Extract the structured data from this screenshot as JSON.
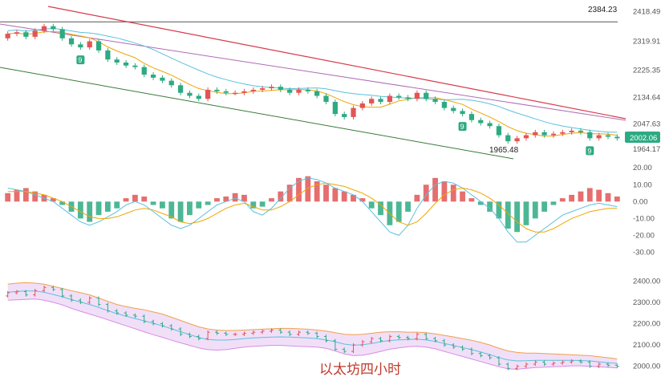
{
  "caption": "以太坊四小时",
  "colors": {
    "up": "#e25555",
    "down": "#2daa82",
    "ma_fast": "#f0a500",
    "ma_slow": "#5bc0de",
    "trend_red": "#d63a4a",
    "trend_purple": "#b06ab3",
    "trend_green": "#3a7a3a",
    "boll_fill": "#e7c9f3",
    "boll_upper": "#f0a04b",
    "boll_lower": "#d68ee6",
    "price_tag": "#2daa82"
  },
  "chart_data": [
    {
      "type": "candlestick",
      "name": "price",
      "y_ticks": [
        "2418.49",
        "2319.91",
        "2225.35",
        "2134.64",
        "2047.63",
        "1964.17"
      ],
      "ylim": [
        1940,
        2430
      ],
      "annotations": [
        {
          "label": "2384.23",
          "value": 2384.23
        },
        {
          "label": "1965.48",
          "value": 1965.48
        }
      ],
      "last_price": "2002.06",
      "markers": [
        {
          "label": "9",
          "index": 8
        },
        {
          "label": "9",
          "index": 50
        },
        {
          "label": "9",
          "index": 64
        }
      ],
      "close": [
        2345,
        2350,
        2335,
        2355,
        2370,
        2360,
        2330,
        2310,
        2300,
        2320,
        2290,
        2260,
        2250,
        2240,
        2235,
        2210,
        2200,
        2190,
        2175,
        2150,
        2140,
        2130,
        2160,
        2155,
        2150,
        2150,
        2155,
        2160,
        2165,
        2170,
        2160,
        2150,
        2160,
        2155,
        2140,
        2120,
        2080,
        2070,
        2100,
        2115,
        2130,
        2120,
        2140,
        2135,
        2130,
        2150,
        2130,
        2120,
        2100,
        2090,
        2080,
        2060,
        2050,
        2040,
        2010,
        1990,
        2000,
        2010,
        2020,
        2010,
        2015,
        2020,
        2025,
        2020,
        2000,
        2010,
        2005,
        2000
      ],
      "open": [
        2330,
        2345,
        2350,
        2335,
        2355,
        2370,
        2360,
        2330,
        2310,
        2300,
        2320,
        2290,
        2260,
        2250,
        2240,
        2235,
        2210,
        2200,
        2190,
        2175,
        2150,
        2140,
        2130,
        2160,
        2155,
        2150,
        2150,
        2155,
        2160,
        2165,
        2170,
        2160,
        2150,
        2160,
        2155,
        2140,
        2120,
        2080,
        2070,
        2100,
        2115,
        2130,
        2120,
        2140,
        2135,
        2130,
        2150,
        2130,
        2120,
        2100,
        2090,
        2080,
        2060,
        2050,
        2040,
        2010,
        1990,
        2000,
        2010,
        2020,
        2010,
        2015,
        2020,
        2025,
        2020,
        2000,
        2010,
        2005
      ]
    },
    {
      "type": "histogram",
      "name": "macd",
      "y_ticks": [
        "20.00",
        "10.00",
        "0.00",
        "-10.00",
        "-20.00",
        "-30.00"
      ],
      "ylim": [
        -35,
        22
      ],
      "histogram": [
        5,
        7,
        8,
        6,
        4,
        2,
        -2,
        -6,
        -10,
        -12,
        -8,
        -6,
        -4,
        2,
        4,
        3,
        -2,
        -4,
        -10,
        -12,
        -8,
        -4,
        -2,
        2,
        3,
        5,
        4,
        -4,
        -3,
        2,
        6,
        10,
        14,
        15,
        12,
        10,
        8,
        6,
        4,
        2,
        -4,
        -8,
        -14,
        -12,
        -6,
        4,
        10,
        14,
        12,
        10,
        6,
        2,
        -2,
        -6,
        -10,
        -16,
        -18,
        -14,
        -10,
        -6,
        -2,
        2,
        4,
        6,
        8,
        7,
        5,
        3
      ],
      "dif": [
        8,
        7,
        6,
        4,
        2,
        0,
        -4,
        -8,
        -12,
        -14,
        -12,
        -9,
        -6,
        -2,
        0,
        -2,
        -6,
        -10,
        -14,
        -16,
        -14,
        -10,
        -6,
        -2,
        0,
        2,
        0,
        -6,
        -8,
        -4,
        2,
        8,
        12,
        14,
        13,
        11,
        8,
        6,
        4,
        0,
        -6,
        -12,
        -18,
        -20,
        -14,
        -4,
        4,
        10,
        12,
        11,
        8,
        4,
        0,
        -4,
        -10,
        -18,
        -24,
        -24,
        -20,
        -16,
        -12,
        -8,
        -6,
        -4,
        -2,
        -1,
        -2,
        -3
      ],
      "dea": [
        6,
        6,
        6,
        5,
        4,
        2,
        0,
        -3,
        -6,
        -9,
        -10,
        -10,
        -9,
        -7,
        -5,
        -4,
        -5,
        -7,
        -9,
        -12,
        -13,
        -12,
        -10,
        -7,
        -4,
        -2,
        -1,
        -3,
        -5,
        -5,
        -3,
        0,
        4,
        8,
        10,
        11,
        10,
        9,
        7,
        5,
        2,
        -2,
        -7,
        -12,
        -14,
        -12,
        -7,
        -1,
        4,
        7,
        8,
        7,
        5,
        2,
        -2,
        -7,
        -12,
        -16,
        -18,
        -18,
        -16,
        -13,
        -10,
        -8,
        -6,
        -5,
        -4,
        -4
      ]
    },
    {
      "type": "bollinger",
      "name": "boll",
      "y_ticks": [
        "2400.00",
        "2300.00",
        "2200.00",
        "2100.00",
        "2000.00"
      ],
      "ylim": [
        1980,
        2420
      ],
      "upper": [
        2385,
        2390,
        2392,
        2390,
        2385,
        2375,
        2365,
        2355,
        2345,
        2335,
        2320,
        2305,
        2290,
        2280,
        2272,
        2265,
        2255,
        2245,
        2230,
        2215,
        2200,
        2185,
        2175,
        2170,
        2168,
        2168,
        2170,
        2172,
        2174,
        2176,
        2178,
        2178,
        2176,
        2174,
        2170,
        2165,
        2158,
        2150,
        2148,
        2150,
        2155,
        2160,
        2162,
        2162,
        2160,
        2160,
        2158,
        2152,
        2145,
        2138,
        2130,
        2122,
        2112,
        2100,
        2085,
        2072,
        2065,
        2062,
        2062,
        2060,
        2058,
        2056,
        2054,
        2052,
        2050,
        2045,
        2040,
        2035
      ],
      "lower": [
        2310,
        2312,
        2314,
        2316,
        2310,
        2300,
        2288,
        2272,
        2258,
        2245,
        2232,
        2218,
        2204,
        2190,
        2176,
        2162,
        2148,
        2136,
        2122,
        2110,
        2098,
        2086,
        2078,
        2076,
        2078,
        2084,
        2090,
        2094,
        2096,
        2098,
        2098,
        2096,
        2094,
        2092,
        2090,
        2084,
        2072,
        2058,
        2050,
        2052,
        2060,
        2070,
        2080,
        2086,
        2092,
        2094,
        2090,
        2082,
        2070,
        2058,
        2046,
        2034,
        2022,
        2010,
        1998,
        1988,
        1986,
        1990,
        1994,
        1996,
        1998,
        2000,
        2002,
        2002,
        2000,
        1998,
        1995,
        1992
      ],
      "middle": [
        2347,
        2351,
        2353,
        2353,
        2347,
        2337,
        2326,
        2313,
        2301,
        2290,
        2276,
        2261,
        2247,
        2235,
        2224,
        2213,
        2201,
        2190,
        2176,
        2162,
        2149,
        2135,
        2126,
        2123,
        2123,
        2126,
        2130,
        2133,
        2135,
        2137,
        2138,
        2137,
        2135,
        2133,
        2130,
        2124,
        2115,
        2104,
        2099,
        2101,
        2107,
        2115,
        2121,
        2124,
        2126,
        2127,
        2124,
        2117,
        2107,
        2098,
        2088,
        2078,
        2067,
        2055,
        2041,
        2030,
        2025,
        2026,
        2028,
        2028,
        2028,
        2028,
        2028,
        2027,
        2025,
        2021,
        2017,
        2013
      ]
    }
  ]
}
